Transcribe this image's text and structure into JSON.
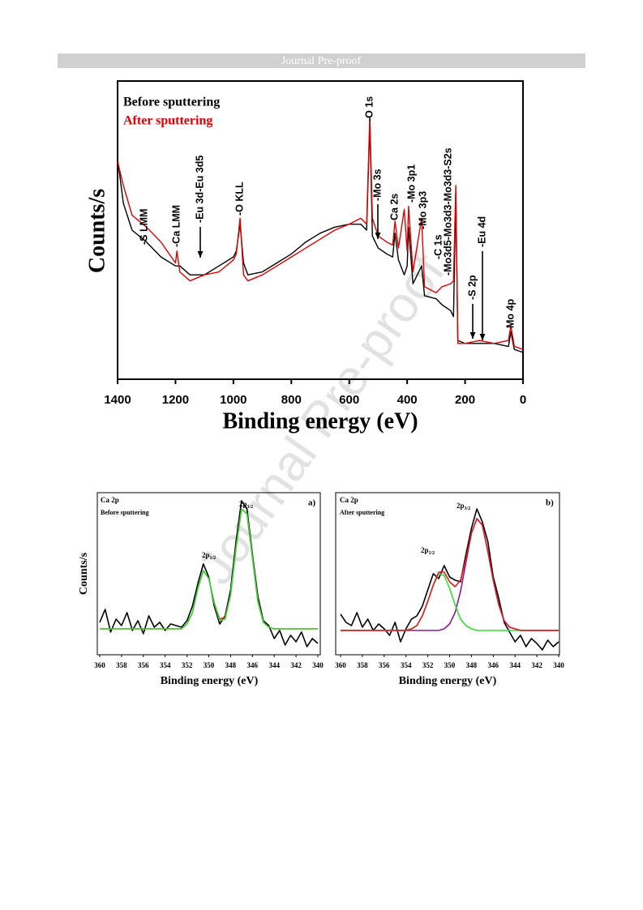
{
  "header": {
    "text": "Journal Pre-proof"
  },
  "watermark": "Journal Pre-proof",
  "chart_data": [
    {
      "type": "line",
      "xlabel": "Binding energy (eV)",
      "ylabel": "Counts/s",
      "x": [
        1400,
        1380,
        1350,
        1300,
        1250,
        1200,
        1195,
        1185,
        1150,
        1100,
        1050,
        1000,
        990,
        977,
        965,
        950,
        900,
        850,
        800,
        750,
        700,
        650,
        600,
        560,
        540,
        529,
        520,
        500,
        470,
        450,
        442,
        430,
        410,
        400,
        395,
        380,
        350,
        340,
        300,
        280,
        250,
        240,
        232,
        225,
        200,
        150,
        100,
        50,
        42,
        30,
        0
      ],
      "series": [
        {
          "name": "Before sputtering",
          "color": "#000000",
          "values": [
            74,
            59,
            50,
            46,
            41,
            38,
            38,
            38,
            35,
            35,
            38,
            41,
            43,
            52,
            39,
            35,
            36,
            39,
            42,
            46,
            49,
            51,
            52,
            52,
            50,
            86,
            48,
            44,
            42,
            41,
            49,
            40,
            35,
            38,
            51,
            32,
            38,
            28,
            27,
            25,
            23,
            21,
            62,
            13,
            12,
            12,
            12,
            11,
            16,
            10,
            9
          ]
        },
        {
          "name": "After sputtering",
          "color": "#e00000",
          "values": [
            73,
            65,
            55,
            51,
            46,
            39,
            43,
            36,
            33,
            35,
            36,
            40,
            42,
            54,
            35,
            33,
            35,
            38,
            41,
            44,
            47,
            50,
            52,
            54,
            52,
            88,
            54,
            48,
            46,
            45,
            53,
            44,
            57,
            43,
            58,
            36,
            54,
            31,
            29,
            31,
            32,
            33,
            65,
            12,
            12,
            13,
            12,
            13,
            18,
            11,
            10
          ]
        }
      ],
      "xlim": [
        1400,
        0
      ],
      "xticks": [
        1400,
        1200,
        1000,
        800,
        600,
        400,
        200,
        0
      ],
      "ylim": [
        0,
        100
      ],
      "annotations": [
        "-S LMM",
        "-Ca LMM",
        "-Eu 3d-Eu 3d5",
        "-O KLL",
        "-O 1s",
        "-Mo 3s",
        "Ca 2s",
        "-Mo 3p1",
        "-Mo 3p3",
        "-C 1s",
        "-Mo3d5-Mo3d3-Mo3d3-S2s",
        "-S 2p",
        "-Eu 4d",
        "Mo 4p"
      ]
    },
    {
      "type": "line",
      "title": "Ca 2p",
      "subtitle": "Before sputtering",
      "panel_label": "a)",
      "xlabel": "Binding energy (eV)",
      "ylabel": "Counts/s",
      "x": [
        360,
        359.5,
        359,
        358.5,
        358,
        357.5,
        357,
        356.5,
        356,
        355.5,
        355,
        354.5,
        354,
        353.5,
        353,
        352.5,
        352,
        351.5,
        351,
        350.5,
        350,
        349.5,
        349,
        348.5,
        348,
        347.5,
        347,
        346.5,
        346,
        345.5,
        345,
        344.5,
        344,
        343.5,
        343,
        342.5,
        342,
        341.5,
        341,
        340.5,
        340
      ],
      "series": [
        {
          "color": "#000000",
          "values": [
            20,
            28,
            14,
            22,
            18,
            26,
            15,
            21,
            13,
            24,
            17,
            20,
            15,
            19,
            18,
            17,
            21,
            30,
            44,
            56,
            48,
            30,
            19,
            24,
            40,
            70,
            95,
            90,
            62,
            36,
            21,
            18,
            10,
            15,
            6,
            12,
            8,
            14,
            5,
            10,
            7
          ]
        },
        {
          "color": "#e41a1c",
          "values": [
            16,
            16,
            16,
            16,
            16,
            16,
            16,
            16,
            16,
            16,
            16,
            16,
            16,
            16,
            16,
            16,
            19,
            26,
            41,
            52,
            47,
            32,
            22,
            23,
            37,
            66,
            90,
            87,
            60,
            33,
            20,
            17,
            16,
            16,
            16,
            16,
            16,
            16,
            16,
            16,
            16
          ]
        },
        {
          "color": "#33dd33",
          "values": [
            16,
            16,
            16,
            16,
            16,
            16,
            16,
            16,
            16,
            16,
            16,
            16,
            16,
            16,
            16,
            16,
            19,
            26,
            41,
            52,
            47,
            32,
            21,
            22,
            37,
            66,
            90,
            87,
            60,
            33,
            20,
            17,
            16,
            16,
            16,
            16,
            16,
            16,
            16,
            16,
            16
          ]
        }
      ],
      "xlim": [
        360,
        340
      ],
      "xticks": [
        360,
        358,
        356,
        354,
        352,
        350,
        348,
        346,
        344,
        342,
        340
      ],
      "ylim": [
        0,
        100
      ],
      "annotations": [
        {
          "text": "2p",
          "sub": "1/2"
        },
        {
          "text": "2p",
          "sub": "3/2"
        }
      ]
    },
    {
      "type": "line",
      "title": "Ca 2p",
      "subtitle": "After sputtering",
      "panel_label": "b)",
      "xlabel": "Binding energy (eV)",
      "x": [
        360,
        359.5,
        359,
        358.5,
        358,
        357.5,
        357,
        356.5,
        356,
        355.5,
        355,
        354.5,
        354,
        353.5,
        353,
        352.5,
        352,
        351.5,
        351,
        350.5,
        350,
        349.5,
        349,
        348.5,
        348,
        347.5,
        347,
        346.5,
        346,
        345.5,
        345,
        344.5,
        344,
        343.5,
        343,
        342.5,
        342,
        341.5,
        341,
        340.5,
        340
      ],
      "series": [
        {
          "color": "#000000",
          "values": [
            25,
            20,
            18,
            26,
            17,
            22,
            15,
            19,
            16,
            12,
            20,
            8,
            16,
            22,
            24,
            30,
            40,
            50,
            47,
            55,
            48,
            46,
            45,
            62,
            78,
            90,
            82,
            70,
            48,
            35,
            20,
            14,
            8,
            12,
            5,
            10,
            7,
            3,
            9,
            5,
            8
          ]
        },
        {
          "color": "#8b1a9b",
          "values": [
            15,
            15,
            15,
            15,
            15,
            15,
            15,
            15,
            15,
            15,
            15,
            15,
            15,
            15,
            15,
            15,
            15,
            15,
            15,
            16,
            19,
            26,
            39,
            57,
            75,
            84,
            80,
            64,
            46,
            31,
            21,
            17,
            16,
            15,
            15,
            15,
            15,
            15,
            15,
            15,
            15
          ]
        },
        {
          "color": "#33dd33",
          "values": [
            15,
            15,
            15,
            15,
            15,
            15,
            15,
            15,
            15,
            15,
            15,
            15,
            15,
            16,
            18,
            24,
            33,
            43,
            50,
            49,
            41,
            31,
            22,
            18,
            16,
            15,
            15,
            15,
            15,
            15,
            15,
            15,
            15,
            15,
            15,
            15,
            15,
            15,
            15,
            15,
            15
          ]
        },
        {
          "color": "#e41a1c",
          "values": [
            15,
            15,
            15,
            15,
            15,
            15,
            15,
            15,
            15,
            15,
            15,
            15,
            15,
            16,
            18,
            24,
            33,
            43,
            51,
            51,
            45,
            42,
            46,
            59,
            75,
            84,
            80,
            64,
            46,
            31,
            21,
            17,
            16,
            15,
            15,
            15,
            15,
            15,
            15,
            15,
            15
          ]
        }
      ],
      "xlim": [
        360,
        340
      ],
      "xticks": [
        360,
        358,
        356,
        354,
        352,
        350,
        348,
        346,
        344,
        342,
        340
      ],
      "ylim": [
        0,
        100
      ],
      "annotations": [
        {
          "text": "2p",
          "sub": "1/2"
        },
        {
          "text": "2p",
          "sub": "3/2"
        }
      ]
    }
  ]
}
